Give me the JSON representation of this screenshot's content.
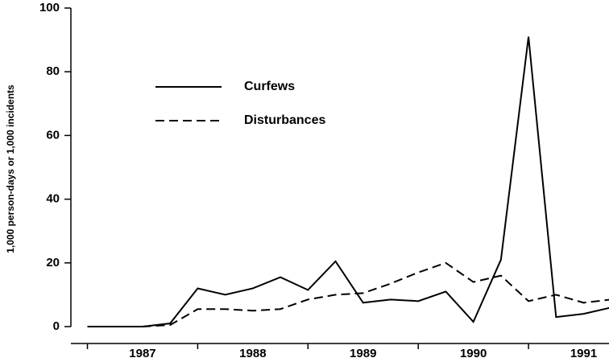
{
  "chart_data": {
    "type": "line",
    "y_label": "1,000 person-days or 1,000 incidents",
    "x": [
      1987.0,
      1987.25,
      1987.5,
      1987.75,
      1988.0,
      1988.25,
      1988.5,
      1988.75,
      1989.0,
      1989.25,
      1989.5,
      1989.75,
      1990.0,
      1990.25,
      1990.5,
      1990.75,
      1991.0,
      1991.25,
      1991.5,
      1991.75
    ],
    "series": [
      {
        "name": "Curfews",
        "color": "#000000",
        "dash": "solid",
        "values": [
          0,
          0,
          0,
          1,
          12,
          10,
          12,
          15.5,
          11.5,
          20.5,
          7.5,
          8.5,
          8,
          11,
          1.5,
          21,
          91,
          3,
          4,
          6
        ]
      },
      {
        "name": "Disturbances",
        "color": "#000000",
        "dash": "dashed",
        "values": [
          0,
          0,
          0,
          0.5,
          5.5,
          5.5,
          5,
          5.5,
          8.5,
          10,
          10.5,
          13.5,
          17,
          20,
          14,
          16,
          8,
          10,
          7.5,
          8.5
        ]
      }
    ],
    "xlim": [
      1986.85,
      1991.73
    ],
    "xticks": [
      {
        "value": 1987.5,
        "label": "1987"
      },
      {
        "value": 1988.5,
        "label": "1988"
      },
      {
        "value": 1989.5,
        "label": "1989"
      },
      {
        "value": 1990.5,
        "label": "1990"
      },
      {
        "value": 1991.5,
        "label": "1991"
      }
    ],
    "ylim": [
      0,
      100
    ],
    "yticks": [
      0,
      20,
      40,
      60,
      80,
      100
    ],
    "legend": "top-left"
  }
}
